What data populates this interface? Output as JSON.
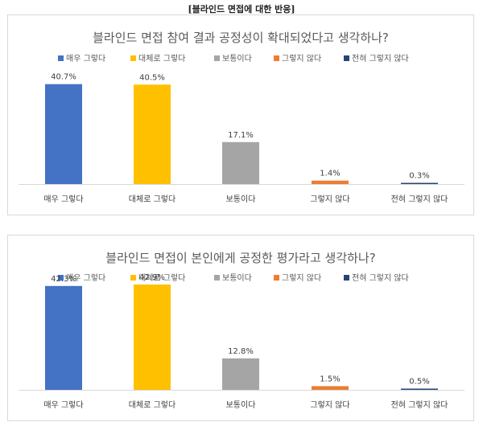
{
  "page_title": "[블라인드 면접에 대한 반응]",
  "colors": {
    "매우 그렇다": "#4472C4",
    "대체로 그렇다": "#FFC000",
    "보통이다": "#A5A5A5",
    "그렇지 않다": "#ED7D31",
    "전혀 그렇지 않다": "#264478"
  },
  "chart_data": [
    {
      "type": "bar",
      "title": "블라인드 면접 참여 결과 공정성이 확대되었다고 생각하나?",
      "categories": [
        "매우 그렇다",
        "대체로 그렇다",
        "보통이다",
        "그렇지 않다",
        "전혀 그렇지 않다"
      ],
      "values": [
        40.7,
        40.5,
        17.1,
        1.4,
        0.3
      ],
      "value_labels": [
        "40.7%",
        "40.5%",
        "17.1%",
        "1.4%",
        "0.3%"
      ],
      "legend": [
        "매우 그렇다",
        "대체로 그렇다",
        "보통이다",
        "그렇지 않다",
        "전혀 그렇지 않다"
      ],
      "legend_position": "top",
      "ylim": [
        0,
        55
      ],
      "grid": false
    },
    {
      "type": "bar",
      "title": "블라인드 면접이 본인에게 공정한 평가라고 생각하나?",
      "categories": [
        "매우 그렇다",
        "대체로 그렇다",
        "보통이다",
        "그렇지 않다",
        "전혀 그렇지 않다"
      ],
      "values": [
        42.3,
        42.9,
        12.8,
        1.5,
        0.5
      ],
      "value_labels": [
        "42.3%",
        "42.9%",
        "12.8%",
        "1.5%",
        "0.5%"
      ],
      "legend": [
        "매우 그렇다",
        "대체로 그렇다",
        "보통이다",
        "그렇지 않다",
        "전혀 그렇지 않다"
      ],
      "legend_position": "top",
      "ylim": [
        0,
        55
      ],
      "grid": false
    }
  ]
}
